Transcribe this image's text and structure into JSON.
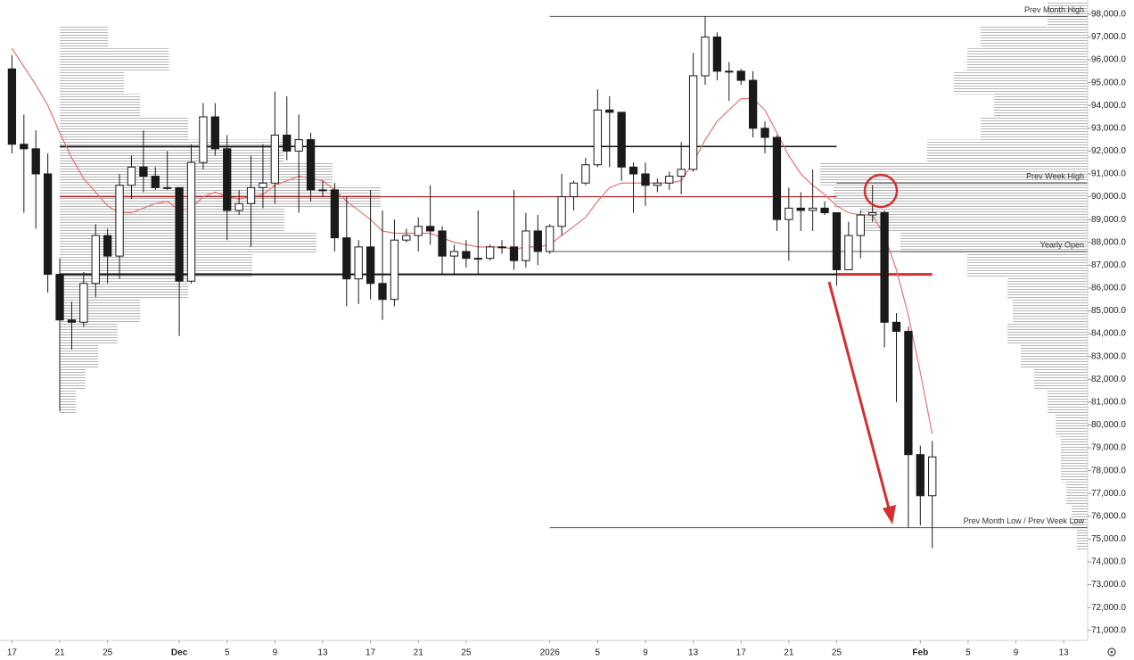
{
  "chart_data": {
    "type": "candlestick",
    "x": [
      "2025-11-17",
      "2025-11-18",
      "2025-11-19",
      "2025-11-20",
      "2025-11-21",
      "2025-11-22",
      "2025-11-23",
      "2025-11-24",
      "2025-11-25",
      "2025-11-26",
      "2025-11-27",
      "2025-11-28",
      "2025-11-29",
      "2025-11-30",
      "2025-12-01",
      "2025-12-02",
      "2025-12-03",
      "2025-12-04",
      "2025-12-05",
      "2025-12-06",
      "2025-12-07",
      "2025-12-08",
      "2025-12-09",
      "2025-12-10",
      "2025-12-11",
      "2025-12-12",
      "2025-12-13",
      "2025-12-14",
      "2025-12-15",
      "2025-12-16",
      "2025-12-17",
      "2025-12-18",
      "2025-12-19",
      "2025-12-20",
      "2025-12-21",
      "2025-12-22",
      "2025-12-23",
      "2025-12-24",
      "2025-12-25",
      "2025-12-26",
      "2025-12-27",
      "2025-12-28",
      "2025-12-29",
      "2025-12-30",
      "2025-12-31",
      "2026-01-01",
      "2026-01-02",
      "2026-01-03",
      "2026-01-04",
      "2026-01-05",
      "2026-01-06",
      "2026-01-07",
      "2026-01-08",
      "2026-01-09",
      "2026-01-10",
      "2026-01-11",
      "2026-01-12",
      "2026-01-13",
      "2026-01-14",
      "2026-01-15",
      "2026-01-16",
      "2026-01-17",
      "2026-01-18",
      "2026-01-19",
      "2026-01-20",
      "2026-01-21",
      "2026-01-22",
      "2026-01-23",
      "2026-01-24",
      "2026-01-25",
      "2026-01-26",
      "2026-01-27",
      "2026-01-28",
      "2026-01-29",
      "2026-01-30",
      "2026-01-31",
      "2026-02-01",
      "2026-02-02"
    ],
    "open": [
      95600,
      92300,
      92100,
      91000,
      86600,
      84600,
      84500,
      86200,
      88300,
      87400,
      90500,
      91300,
      90900,
      90400,
      90400,
      86300,
      91500,
      93500,
      92100,
      89400,
      89700,
      90400,
      90600,
      92700,
      92000,
      92500,
      90300,
      90300,
      88200,
      86400,
      87800,
      86200,
      85500,
      88100,
      88300,
      88700,
      88500,
      87400,
      87600,
      87300,
      87300,
      87800,
      87800,
      87200,
      88500,
      87600,
      88700,
      90000,
      90600,
      91400,
      93800,
      93700,
      91300,
      91000,
      90500,
      90600,
      90900,
      91200,
      95300,
      97000,
      95500,
      95500,
      95100,
      93000,
      92600,
      89000,
      89500,
      89400,
      89500,
      89300,
      86800,
      88300,
      89200,
      89300,
      84500,
      84100,
      78700,
      76900
    ],
    "high": [
      96200,
      93600,
      92900,
      91900,
      87300,
      85400,
      86700,
      88800,
      88600,
      91000,
      91800,
      92900,
      91300,
      92000,
      90400,
      92300,
      94100,
      94100,
      92700,
      90300,
      91800,
      92300,
      94600,
      94400,
      93600,
      92800,
      90700,
      90600,
      90000,
      88100,
      90300,
      89400,
      89000,
      88600,
      89100,
      90500,
      88700,
      87900,
      88100,
      89400,
      87900,
      88100,
      90300,
      89300,
      89200,
      88800,
      91000,
      90700,
      91700,
      94700,
      94400,
      93700,
      91500,
      91500,
      90800,
      91100,
      92400,
      96300,
      97900,
      97200,
      95900,
      95600,
      95500,
      93300,
      92700,
      90400,
      90200,
      91200,
      89800,
      89300,
      88900,
      89400,
      90500,
      89400,
      84900,
      84300,
      79100,
      79300
    ],
    "low": [
      91900,
      89300,
      88600,
      85800,
      80600,
      83300,
      84300,
      85600,
      86200,
      86400,
      89900,
      90200,
      90300,
      90300,
      83900,
      86200,
      91200,
      91800,
      88100,
      89200,
      87800,
      89500,
      89700,
      91600,
      89300,
      89800,
      90000,
      87600,
      85200,
      85300,
      85500,
      84600,
      85200,
      88000,
      87600,
      87900,
      86600,
      86600,
      86900,
      86600,
      87200,
      87500,
      86800,
      86900,
      87000,
      87500,
      88300,
      89400,
      90500,
      91300,
      91300,
      90700,
      89300,
      89600,
      90200,
      90300,
      90100,
      91100,
      94900,
      95100,
      94200,
      94900,
      92600,
      91900,
      88500,
      87200,
      88500,
      88500,
      89200,
      86100,
      86800,
      87300,
      88900,
      83400,
      81000,
      75500,
      75600,
      74600
    ],
    "close": [
      92300,
      92100,
      91000,
      86600,
      84600,
      84500,
      86200,
      88300,
      87400,
      90500,
      91300,
      90900,
      90400,
      90400,
      86300,
      91500,
      93500,
      92100,
      89400,
      89700,
      90400,
      90600,
      92700,
      92000,
      92500,
      90300,
      90300,
      88200,
      86400,
      87800,
      86200,
      85500,
      88100,
      88300,
      88700,
      88500,
      87400,
      87600,
      87300,
      87300,
      87800,
      87800,
      87200,
      88500,
      87600,
      88700,
      90000,
      90600,
      91400,
      93800,
      93700,
      91300,
      91000,
      90500,
      90600,
      90900,
      91200,
      95300,
      97000,
      95500,
      95500,
      95100,
      93000,
      92600,
      89000,
      89500,
      89400,
      89500,
      89300,
      86800,
      88300,
      89200,
      89300,
      84500,
      84100,
      78700,
      76900,
      78600
    ],
    "up_color": "#ffffff",
    "down_color": "#1a1a1a",
    "outline_color": "#1a1a1a",
    "moving_average": {
      "color": "#e57373",
      "values": [
        96500,
        95700,
        94900,
        94000,
        92800,
        91700,
        90800,
        90200,
        89600,
        89300,
        89300,
        89500,
        89700,
        89800,
        89400,
        89500,
        90000,
        90200,
        90000,
        89900,
        90000,
        90100,
        90500,
        90700,
        90900,
        90800,
        90700,
        90300,
        89800,
        89400,
        89000,
        88500,
        88400,
        88400,
        88400,
        88400,
        88200,
        88000,
        87900,
        87800,
        87800,
        87800,
        87700,
        87800,
        87800,
        87900,
        88300,
        88700,
        89100,
        89800,
        90400,
        90600,
        90600,
        90600,
        90600,
        90600,
        90700,
        91500,
        92500,
        93300,
        93800,
        94300,
        94300,
        93800,
        92800,
        91800,
        91000,
        90500,
        90100,
        89600,
        89300,
        89200,
        89200,
        88300,
        86800,
        84800,
        82300,
        79600
      ]
    },
    "levels": [
      {
        "value": 97900,
        "label": "Prev Month High",
        "start": "2026-01-01",
        "color": "#555555",
        "width": 1
      },
      {
        "value": 92200,
        "start": "2025-11-21",
        "end": "2026-01-25",
        "color": "#111111",
        "width": 1.5
      },
      {
        "value": 90000,
        "start": "2025-11-21",
        "end": "2026-01-25",
        "color": "#b71c1c",
        "width": 1.2
      },
      {
        "value": 86600,
        "start": "2025-11-21",
        "end": "2026-01-25",
        "color": "#111111",
        "width": 2
      },
      {
        "value": 86600,
        "start": "2026-01-25",
        "end": "2026-02-02",
        "color": "#d32f2f",
        "width": 3
      },
      {
        "value": 90600,
        "label": "Prev Week High",
        "start": "2026-01-25",
        "color": "#555555",
        "width": 1
      },
      {
        "value": 87600,
        "label": "Yearly Open",
        "start": "2026-01-01",
        "color": "#555555",
        "width": 1
      },
      {
        "value": 75500,
        "label": "Prev Month Low / Prev Week Low",
        "start": "2026-01-01",
        "color": "#555555",
        "width": 1
      }
    ],
    "volume_profiles": [
      {
        "side": "left",
        "start": "2025-11-21",
        "prices": [
          81000,
          82000,
          83000,
          84000,
          85000,
          86000,
          87000,
          88000,
          89000,
          90000,
          91000,
          92000,
          93000,
          94000,
          95000,
          96000,
          97000
        ],
        "volumes": [
          5,
          8,
          12,
          18,
          25,
          40,
          60,
          80,
          70,
          100,
          85,
          70,
          40,
          25,
          20,
          34,
          15
        ]
      },
      {
        "side": "right",
        "prices": [
          75000,
          76000,
          77000,
          78000,
          79000,
          80000,
          81000,
          82000,
          83000,
          84000,
          85000,
          86000,
          87000,
          88000,
          89000,
          90000,
          91000,
          92000,
          93000,
          94000,
          95000,
          96000,
          97000,
          98000
        ],
        "volumes": [
          4,
          6,
          8,
          10,
          10,
          12,
          15,
          20,
          25,
          30,
          28,
          30,
          45,
          70,
          85,
          95,
          100,
          60,
          40,
          35,
          50,
          45,
          40,
          15
        ]
      }
    ],
    "xlim": [
      "2025-11-16",
      "2026-02-15"
    ],
    "ylim": [
      70560,
      98620
    ],
    "xticks": [
      {
        "value": "2025-11-17",
        "label": "17"
      },
      {
        "value": "2025-11-21",
        "label": "21"
      },
      {
        "value": "2025-11-25",
        "label": "25"
      },
      {
        "value": "2025-12-01",
        "label": "Dec"
      },
      {
        "value": "2025-12-05",
        "label": "5"
      },
      {
        "value": "2025-12-09",
        "label": "9"
      },
      {
        "value": "2025-12-13",
        "label": "13"
      },
      {
        "value": "2025-12-17",
        "label": "17"
      },
      {
        "value": "2025-12-21",
        "label": "21"
      },
      {
        "value": "2025-12-25",
        "label": "25"
      },
      {
        "value": "2026-01-01",
        "label": "2026"
      },
      {
        "value": "2026-01-05",
        "label": "5"
      },
      {
        "value": "2026-01-09",
        "label": "9"
      },
      {
        "value": "2026-01-13",
        "label": "13"
      },
      {
        "value": "2026-01-17",
        "label": "17"
      },
      {
        "value": "2026-01-21",
        "label": "21"
      },
      {
        "value": "2026-01-25",
        "label": "25"
      },
      {
        "value": "2026-02-01",
        "label": "Feb"
      },
      {
        "value": "2026-02-05",
        "label": "5"
      },
      {
        "value": "2026-02-09",
        "label": "9"
      },
      {
        "value": "2026-02-13",
        "label": "13"
      }
    ],
    "yticks": [
      {
        "value": 98000,
        "label": "98,000.0"
      },
      {
        "value": 97000,
        "label": "97,000.0"
      },
      {
        "value": 96000,
        "label": "96,000.0"
      },
      {
        "value": 95000,
        "label": "95,000.0"
      },
      {
        "value": 94000,
        "label": "94,000.0"
      },
      {
        "value": 93000,
        "label": "93,000.0"
      },
      {
        "value": 92000,
        "label": "92,000.0"
      },
      {
        "value": 91000,
        "label": "91,000.0"
      },
      {
        "value": 90000,
        "label": "90,000.0"
      },
      {
        "value": 89000,
        "label": "89,000.0"
      },
      {
        "value": 88000,
        "label": "88,000.0"
      },
      {
        "value": 87000,
        "label": "87,000.0"
      },
      {
        "value": 86000,
        "label": "86,000.0"
      },
      {
        "value": 85000,
        "label": "85,000.0"
      },
      {
        "value": 84000,
        "label": "84,000.0"
      },
      {
        "value": 83000,
        "label": "83,000.0"
      },
      {
        "value": 82000,
        "label": "82,000.0"
      },
      {
        "value": 81000,
        "label": "81,000.0"
      },
      {
        "value": 80000,
        "label": "80,000.0"
      },
      {
        "value": 79000,
        "label": "79,000.0"
      },
      {
        "value": 78000,
        "label": "78,000.0"
      },
      {
        "value": 77000,
        "label": "77,000.0"
      },
      {
        "value": 76000,
        "label": "76,000.0"
      },
      {
        "value": 75000,
        "label": "75,000.0"
      },
      {
        "value": 74000,
        "label": "74,000.0"
      },
      {
        "value": 73000,
        "label": "73,000.0"
      },
      {
        "value": 72000,
        "label": "72,000.0"
      },
      {
        "value": 71000,
        "label": "71,000.0"
      }
    ],
    "grid": false
  }
}
